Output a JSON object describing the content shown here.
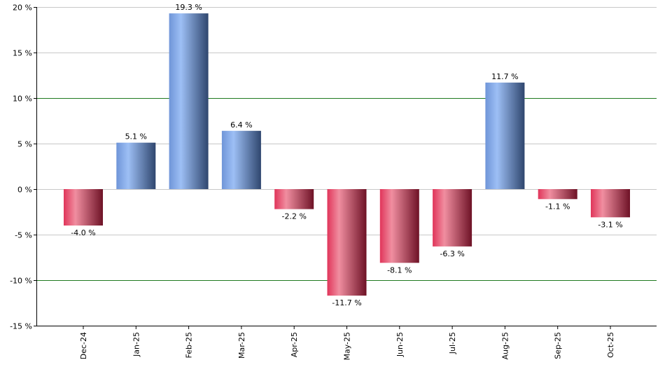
{
  "chart_data": {
    "type": "bar",
    "title": "",
    "xlabel": "",
    "ylabel": "",
    "categories": [
      "Dec-24",
      "Jan-25",
      "Feb-25",
      "Mar-25",
      "Apr-25",
      "May-25",
      "Jun-25",
      "Jul-25",
      "Aug-25",
      "Sep-25",
      "Oct-25"
    ],
    "values": [
      -4.0,
      5.1,
      19.3,
      6.4,
      -2.2,
      -11.7,
      -8.1,
      -6.3,
      11.7,
      -1.1,
      -3.1
    ],
    "value_labels": [
      "-4.0 %",
      "5.1 %",
      "19.3 %",
      "6.4 %",
      "-2.2 %",
      "-11.7 %",
      "-8.1 %",
      "-6.3 %",
      "11.7 %",
      "-1.1 %",
      "-3.1 %"
    ],
    "ylim": [
      -15,
      20
    ],
    "yticks": [
      20,
      15,
      10,
      5,
      0,
      -5,
      -10,
      -15
    ],
    "ytick_labels": [
      "20 %",
      "15 %",
      "10 %",
      "5 %",
      "0 %",
      "-5 %",
      "-10 %",
      "-15 %"
    ],
    "highlight_lines": [
      10,
      -10
    ],
    "grid": true,
    "legend": "none",
    "colors": {
      "positive_light": "#9dbff5",
      "positive_mid": "#6f95d8",
      "positive_dark": "#2f466e",
      "negative_light": "#f08ea0",
      "negative_mid": "#e0355a",
      "negative_dark": "#6e1226",
      "grid": "#c8c8c8",
      "highlight_grid": "#1f7a1f",
      "axis": "#000000"
    }
  }
}
